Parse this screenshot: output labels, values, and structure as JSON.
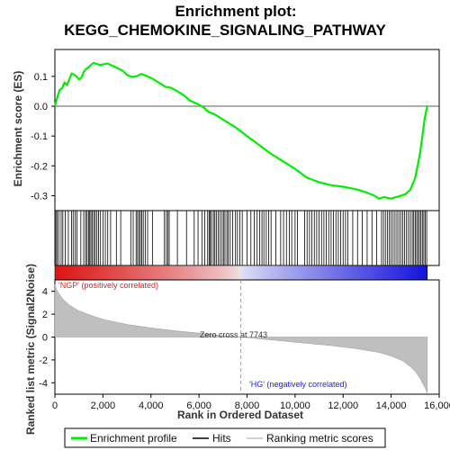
{
  "chart_data": {
    "type": "line",
    "title_line1": "Enrichment plot:",
    "title_line2": "KEGG_CHEMOKINE_SIGNALING_PATHWAY",
    "top_panel": {
      "ylabel": "Enrichment score (ES)",
      "ylim": [
        -0.35,
        0.19
      ],
      "yticks": [
        "0.1",
        "0.0",
        "-0.1",
        "-0.2",
        "-0.3"
      ],
      "ytick_values": [
        0.1,
        0.0,
        -0.1,
        -0.2,
        -0.3
      ],
      "series_color": "#00ee00",
      "x": [
        0,
        100,
        200,
        300,
        400,
        500,
        600,
        700,
        800,
        900,
        1000,
        1100,
        1200,
        1300,
        1400,
        1500,
        1600,
        1700,
        1800,
        1900,
        2000,
        2200,
        2400,
        2600,
        2800,
        3000,
        3200,
        3400,
        3600,
        3800,
        4000,
        4200,
        4400,
        4600,
        4800,
        5000,
        5200,
        5400,
        5600,
        5800,
        6000,
        6200,
        6400,
        6600,
        6800,
        7000,
        7500,
        8000,
        8500,
        9000,
        9500,
        10000,
        10500,
        11000,
        11500,
        12000,
        12300,
        12600,
        13000,
        13300,
        13500,
        13700,
        14000,
        14200,
        14400,
        14600,
        14800,
        15000,
        15100,
        15200,
        15300,
        15400,
        15500
      ],
      "y": [
        0.0,
        0.03,
        0.055,
        0.06,
        0.08,
        0.07,
        0.09,
        0.11,
        0.105,
        0.1,
        0.09,
        0.095,
        0.115,
        0.125,
        0.13,
        0.138,
        0.145,
        0.143,
        0.14,
        0.138,
        0.14,
        0.143,
        0.135,
        0.128,
        0.12,
        0.105,
        0.098,
        0.1,
        0.108,
        0.102,
        0.095,
        0.085,
        0.075,
        0.065,
        0.062,
        0.055,
        0.045,
        0.035,
        0.02,
        0.012,
        0.005,
        -0.005,
        -0.02,
        -0.025,
        -0.035,
        -0.045,
        -0.07,
        -0.1,
        -0.13,
        -0.16,
        -0.185,
        -0.21,
        -0.24,
        -0.255,
        -0.265,
        -0.27,
        -0.275,
        -0.28,
        -0.29,
        -0.3,
        -0.31,
        -0.305,
        -0.31,
        -0.305,
        -0.3,
        -0.295,
        -0.28,
        -0.24,
        -0.2,
        -0.16,
        -0.1,
        -0.04,
        0.0
      ]
    },
    "ranked_panel": {
      "ylabel": "Ranked list metric (Signal2Noise)",
      "ylim": [
        -5,
        5
      ],
      "yticks": [
        "4",
        "2",
        "0",
        "-2",
        "-4"
      ],
      "ytick_values": [
        4,
        2,
        0,
        -2,
        -4
      ],
      "zero_cross_label": "Zero cross at 7743",
      "zero_cross_x": 7743,
      "pos_label": "'NGP' (positively correlated)",
      "neg_label": "'HG' (negatively correlated)",
      "x": [
        0,
        100,
        300,
        600,
        1000,
        1500,
        2000,
        3000,
        4000,
        5000,
        6000,
        7000,
        7743,
        8500,
        9500,
        10500,
        11500,
        12500,
        13500,
        14000,
        14500,
        14800,
        15000,
        15200,
        15400,
        15500
      ],
      "y": [
        4.6,
        4.0,
        3.4,
        2.8,
        2.3,
        1.9,
        1.55,
        1.1,
        0.8,
        0.55,
        0.35,
        0.12,
        0.0,
        -0.15,
        -0.35,
        -0.55,
        -0.75,
        -1.0,
        -1.35,
        -1.65,
        -2.1,
        -2.6,
        -3.0,
        -3.6,
        -4.4,
        -4.9
      ]
    },
    "x_axis": {
      "label": "Rank in Ordered Dataset",
      "xlim": [
        0,
        16000
      ],
      "ticks": [
        "0",
        "2,000",
        "4,000",
        "6,000",
        "8,000",
        "10,000",
        "12,000",
        "14,000",
        "16,000"
      ],
      "tick_values": [
        0,
        2000,
        4000,
        6000,
        8000,
        10000,
        12000,
        14000,
        16000
      ]
    },
    "hits": [
      40,
      90,
      160,
      260,
      330,
      430,
      560,
      690,
      760,
      840,
      920,
      1080,
      1200,
      1280,
      1340,
      1400,
      1450,
      1500,
      1560,
      1620,
      1680,
      1750,
      1820,
      1900,
      2000,
      2100,
      2200,
      2320,
      2560,
      2740,
      3160,
      3260,
      3380,
      3440,
      3500,
      3560,
      3620,
      3680,
      3760,
      3860,
      4060,
      4560,
      4640,
      4700,
      4760,
      5100,
      5480,
      5800,
      5960,
      6120,
      6240,
      6360,
      6420,
      6470,
      6520,
      6600,
      6660,
      6720,
      6800,
      6880,
      6960,
      7020,
      7080,
      7160,
      7220,
      7300,
      7400,
      7520,
      7600,
      7700,
      7800,
      8000,
      8160,
      8300,
      8420,
      8520,
      8620,
      8700,
      8800,
      8900,
      9000,
      9200,
      9400,
      9520,
      9640,
      9760,
      9860,
      10000,
      10100,
      10400,
      10500,
      10600,
      10700,
      10800,
      10900,
      11000,
      11100,
      11200,
      11300,
      11400,
      11500,
      11600,
      11700,
      11800,
      11900,
      12000,
      12100,
      12200,
      12400,
      12600,
      12800,
      13000,
      13200,
      13400,
      13600,
      13680,
      13760,
      13840,
      13920,
      14000,
      14080,
      14160,
      14240,
      14320,
      14400,
      14480,
      14560,
      14640,
      14720,
      14800,
      14880,
      14940,
      15000,
      15060,
      15120,
      15180,
      15240,
      15300,
      15360,
      15420,
      15480
    ],
    "legend": {
      "entries": [
        "Enrichment profile",
        "Hits",
        "Ranking metric scores"
      ],
      "colors": [
        "#00ee00",
        "#000000",
        "#c0c0c0"
      ]
    }
  }
}
